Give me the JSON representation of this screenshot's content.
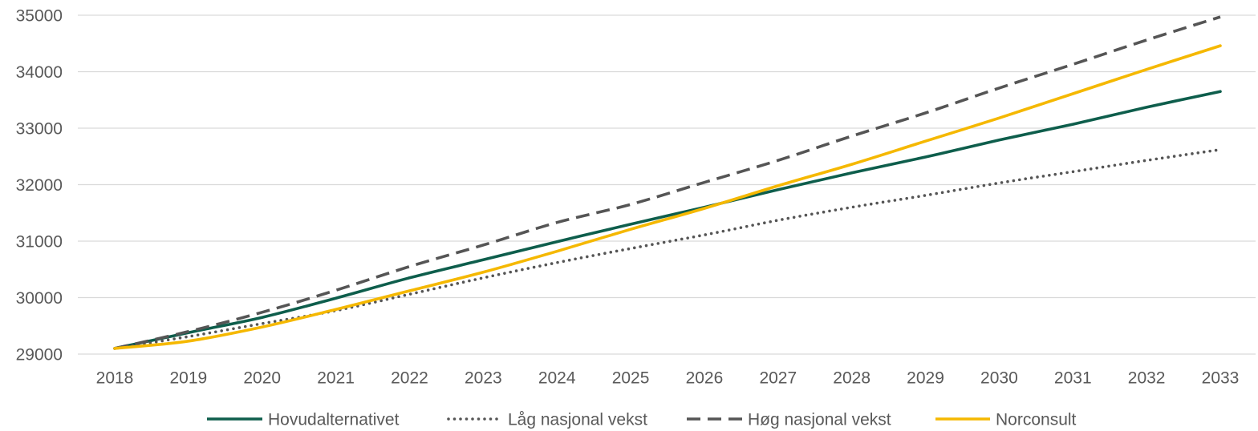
{
  "chart_data": {
    "type": "line",
    "categories": [
      "2018",
      "2019",
      "2020",
      "2021",
      "2022",
      "2023",
      "2024",
      "2025",
      "2026",
      "2027",
      "2028",
      "2029",
      "2030",
      "2031",
      "2032",
      "2033"
    ],
    "ylim": [
      29000,
      35000
    ],
    "yticks": [
      29000,
      30000,
      31000,
      32000,
      33000,
      34000,
      35000
    ],
    "grid": "horizontal",
    "legend": "bottom",
    "smooth": true,
    "series": [
      {
        "name": "Hovudalternativet",
        "color": "#0e5e4c",
        "style": "solid",
        "values": [
          29100,
          29380,
          29650,
          29990,
          30350,
          30670,
          30990,
          31300,
          31600,
          31910,
          32210,
          32490,
          32790,
          33070,
          33370,
          33650
        ]
      },
      {
        "name": "Låg nasjonal vekst",
        "color": "#555555",
        "style": "dotted",
        "values": [
          29100,
          29310,
          29540,
          29770,
          30060,
          30350,
          30620,
          30870,
          31110,
          31370,
          31600,
          31810,
          32030,
          32230,
          32430,
          32620
        ]
      },
      {
        "name": "Høg nasjonal vekst",
        "color": "#555555",
        "style": "dashed",
        "values": [
          29100,
          29400,
          29740,
          30130,
          30550,
          30930,
          31330,
          31650,
          32040,
          32430,
          32860,
          33270,
          33710,
          34130,
          34560,
          34970
        ]
      },
      {
        "name": "Norconsult",
        "color": "#f5b800",
        "style": "solid",
        "values": [
          29100,
          29230,
          29480,
          29790,
          30120,
          30450,
          30820,
          31210,
          31580,
          31980,
          32360,
          32770,
          33180,
          33610,
          34040,
          34460
        ]
      }
    ]
  }
}
